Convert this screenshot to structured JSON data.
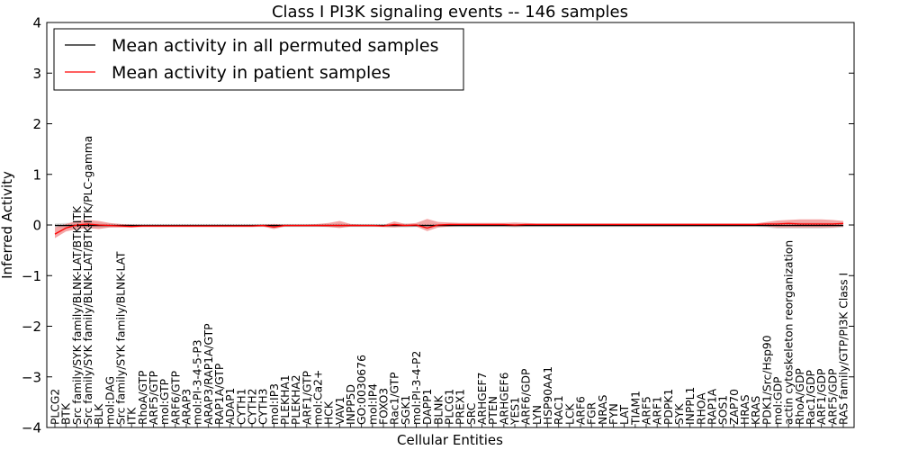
{
  "chart_data": {
    "type": "line",
    "title": "Class I PI3K signaling events -- 146 samples",
    "xlabel": "Cellular Entities",
    "ylabel": "Inferred Activity",
    "ylim": [
      -4,
      4
    ],
    "yticks": [
      -4,
      -3,
      -2,
      -1,
      0,
      1,
      2,
      3,
      4
    ],
    "ytick_labels": [
      "−4",
      "−3",
      "−2",
      "−1",
      "0",
      "1",
      "2",
      "3",
      "4"
    ],
    "legend_position": "top-left",
    "categories": [
      "PLCG2",
      "BTK",
      "Src family/SYK family/BLNK-LAT/BTK-ITK",
      "Src family/SYK family/BLNK-LAT/BTK-ITK/PLC-gamma",
      "BLK",
      "mol:DAG",
      "Src family/SYK family/BLNK-LAT",
      "ITK",
      "RhoA/GTP",
      "ARF5/GTP",
      "mol:GTP",
      "ARF6/GTP",
      "ARAP3",
      "mol:PI-3-4-5-P3",
      "ARAP3/RAP1A/GTP",
      "RAP1A/GTP",
      "ADAP1",
      "CYTH1",
      "CYTH2",
      "CYTH3",
      "mol:IP3",
      "PLEKHA1",
      "PLEKHA2",
      "ARF1/GTP",
      "mol:Ca2+",
      "HCK",
      "VAV1",
      "INPP5D",
      "GO:0030676",
      "mol:IP4",
      "FOXO3",
      "Rac1/GTP",
      "SGK1",
      "mol:PI-3-4-P2",
      "DAPP1",
      "BLNK",
      "PLCG1",
      "PREX1",
      "SRC",
      "ARHGEF7",
      "PTEN",
      "ARHGEF6",
      "YES1",
      "ARF6/GDP",
      "LYN",
      "HSP90AA1",
      "RAC1",
      "LCK",
      "ARF6",
      "FGR",
      "NRAS",
      "FYN",
      "LAT",
      "TIAM1",
      "ARF5",
      "ARF1",
      "PDPK1",
      "SYK",
      "INPPL1",
      "RHOA",
      "RAP1A",
      "SOS1",
      "ZAP70",
      "HRAS",
      "KRAS",
      "PDK1/Src/Hsp90",
      "mol:GDP",
      "actin cytoskeleton reorganization",
      "RhoA/GDP",
      "Rac1/GDP",
      "ARF1/GDP",
      "ARF5/GDP",
      "RAS family/GTP/PI3K Class I"
    ],
    "series": [
      {
        "name": "Mean activity in all permuted samples",
        "color": "#000000",
        "band_color": "#bfbfbf",
        "values": [
          -0.01,
          -0.01,
          -0.01,
          -0.01,
          -0.01,
          -0.01,
          -0.01,
          -0.01,
          -0.01,
          -0.01,
          -0.01,
          -0.01,
          -0.01,
          -0.01,
          -0.01,
          -0.01,
          -0.01,
          -0.01,
          -0.01,
          -0.01,
          -0.01,
          -0.01,
          -0.01,
          -0.01,
          -0.01,
          -0.01,
          -0.01,
          -0.01,
          -0.01,
          -0.01,
          -0.01,
          -0.01,
          -0.01,
          -0.01,
          -0.01,
          -0.01,
          -0.01,
          -0.01,
          -0.01,
          -0.01,
          -0.01,
          -0.01,
          -0.01,
          -0.01,
          -0.01,
          -0.01,
          -0.01,
          -0.01,
          -0.01,
          -0.01,
          -0.01,
          -0.01,
          -0.01,
          -0.01,
          -0.01,
          -0.01,
          -0.01,
          -0.01,
          -0.01,
          -0.01,
          -0.01,
          -0.01,
          -0.01,
          -0.01,
          -0.01,
          -0.01,
          -0.01,
          -0.01,
          -0.01,
          -0.01,
          -0.01,
          -0.01,
          -0.01
        ],
        "lower": [
          -0.05,
          -0.06,
          -0.07,
          -0.07,
          -0.06,
          -0.05,
          -0.04,
          -0.04,
          -0.04,
          -0.04,
          -0.04,
          -0.04,
          -0.04,
          -0.04,
          -0.04,
          -0.04,
          -0.04,
          -0.04,
          -0.04,
          -0.04,
          -0.04,
          -0.04,
          -0.04,
          -0.04,
          -0.04,
          -0.04,
          -0.05,
          -0.04,
          -0.04,
          -0.04,
          -0.04,
          -0.04,
          -0.05,
          -0.04,
          -0.04,
          -0.04,
          -0.04,
          -0.04,
          -0.04,
          -0.04,
          -0.04,
          -0.04,
          -0.05,
          -0.04,
          -0.04,
          -0.04,
          -0.04,
          -0.04,
          -0.04,
          -0.04,
          -0.04,
          -0.04,
          -0.04,
          -0.04,
          -0.04,
          -0.04,
          -0.04,
          -0.04,
          -0.04,
          -0.04,
          -0.04,
          -0.04,
          -0.04,
          -0.04,
          -0.04,
          -0.05,
          -0.07,
          -0.07,
          -0.07,
          -0.07,
          -0.07,
          -0.06,
          -0.05
        ],
        "upper": [
          0.03,
          0.04,
          0.05,
          0.05,
          0.04,
          0.03,
          0.02,
          0.02,
          0.02,
          0.02,
          0.02,
          0.02,
          0.02,
          0.02,
          0.02,
          0.02,
          0.02,
          0.02,
          0.02,
          0.02,
          0.02,
          0.02,
          0.02,
          0.02,
          0.02,
          0.02,
          0.03,
          0.02,
          0.02,
          0.02,
          0.02,
          0.02,
          0.03,
          0.02,
          0.02,
          0.02,
          0.02,
          0.02,
          0.02,
          0.02,
          0.02,
          0.02,
          0.03,
          0.02,
          0.02,
          0.02,
          0.02,
          0.02,
          0.02,
          0.02,
          0.02,
          0.02,
          0.02,
          0.02,
          0.02,
          0.02,
          0.02,
          0.02,
          0.02,
          0.02,
          0.02,
          0.02,
          0.02,
          0.02,
          0.02,
          0.03,
          0.05,
          0.05,
          0.05,
          0.05,
          0.05,
          0.04,
          0.03
        ]
      },
      {
        "name": "Mean activity in patient samples",
        "color": "#ff0000",
        "band_color": "#f08080",
        "values": [
          -0.18,
          -0.06,
          0.0,
          0.02,
          0.0,
          -0.01,
          -0.02,
          -0.03,
          -0.02,
          -0.02,
          -0.02,
          -0.02,
          -0.02,
          -0.02,
          -0.02,
          -0.02,
          -0.02,
          -0.02,
          -0.02,
          -0.01,
          -0.04,
          -0.01,
          -0.01,
          -0.01,
          -0.01,
          -0.01,
          -0.01,
          -0.01,
          -0.01,
          -0.01,
          -0.02,
          0.01,
          -0.01,
          0.0,
          -0.06,
          0.0,
          0.01,
          0.01,
          0.01,
          0.01,
          0.01,
          0.01,
          0.0,
          0.01,
          0.01,
          0.01,
          0.01,
          0.01,
          0.01,
          0.01,
          0.01,
          0.01,
          0.01,
          0.01,
          0.01,
          0.01,
          0.01,
          0.01,
          0.01,
          0.01,
          0.01,
          0.01,
          0.01,
          0.01,
          0.01,
          0.02,
          0.02,
          0.03,
          0.02,
          0.02,
          0.02,
          0.02,
          0.03
        ],
        "lower": [
          -0.26,
          -0.13,
          -0.08,
          -0.06,
          -0.08,
          -0.05,
          -0.05,
          -0.05,
          -0.04,
          -0.04,
          -0.04,
          -0.04,
          -0.04,
          -0.04,
          -0.04,
          -0.04,
          -0.04,
          -0.04,
          -0.04,
          -0.03,
          -0.08,
          -0.03,
          -0.03,
          -0.03,
          -0.03,
          -0.04,
          -0.06,
          -0.03,
          -0.03,
          -0.03,
          -0.04,
          -0.05,
          -0.03,
          -0.03,
          -0.12,
          -0.05,
          -0.03,
          -0.02,
          -0.02,
          -0.02,
          -0.02,
          -0.02,
          -0.03,
          -0.02,
          -0.02,
          -0.02,
          -0.02,
          -0.02,
          -0.02,
          -0.02,
          -0.02,
          -0.02,
          -0.02,
          -0.02,
          -0.02,
          -0.02,
          -0.02,
          -0.02,
          -0.02,
          -0.02,
          -0.02,
          -0.02,
          -0.02,
          -0.02,
          -0.02,
          -0.03,
          -0.05,
          -0.05,
          -0.05,
          -0.05,
          -0.05,
          -0.05,
          -0.03
        ],
        "upper": [
          -0.05,
          0.02,
          0.08,
          0.1,
          0.08,
          0.04,
          0.02,
          0.01,
          0.0,
          0.0,
          0.0,
          0.0,
          0.0,
          0.0,
          0.0,
          0.0,
          0.0,
          0.0,
          0.0,
          0.01,
          0.02,
          0.01,
          0.01,
          0.01,
          0.02,
          0.04,
          0.08,
          0.02,
          0.01,
          0.01,
          0.0,
          0.07,
          0.02,
          0.04,
          0.12,
          0.06,
          0.05,
          0.04,
          0.04,
          0.04,
          0.04,
          0.04,
          0.05,
          0.04,
          0.03,
          0.03,
          0.03,
          0.03,
          0.03,
          0.03,
          0.03,
          0.03,
          0.03,
          0.03,
          0.03,
          0.03,
          0.03,
          0.03,
          0.03,
          0.03,
          0.03,
          0.03,
          0.03,
          0.03,
          0.03,
          0.06,
          0.09,
          0.1,
          0.11,
          0.11,
          0.11,
          0.1,
          0.08
        ]
      }
    ]
  }
}
